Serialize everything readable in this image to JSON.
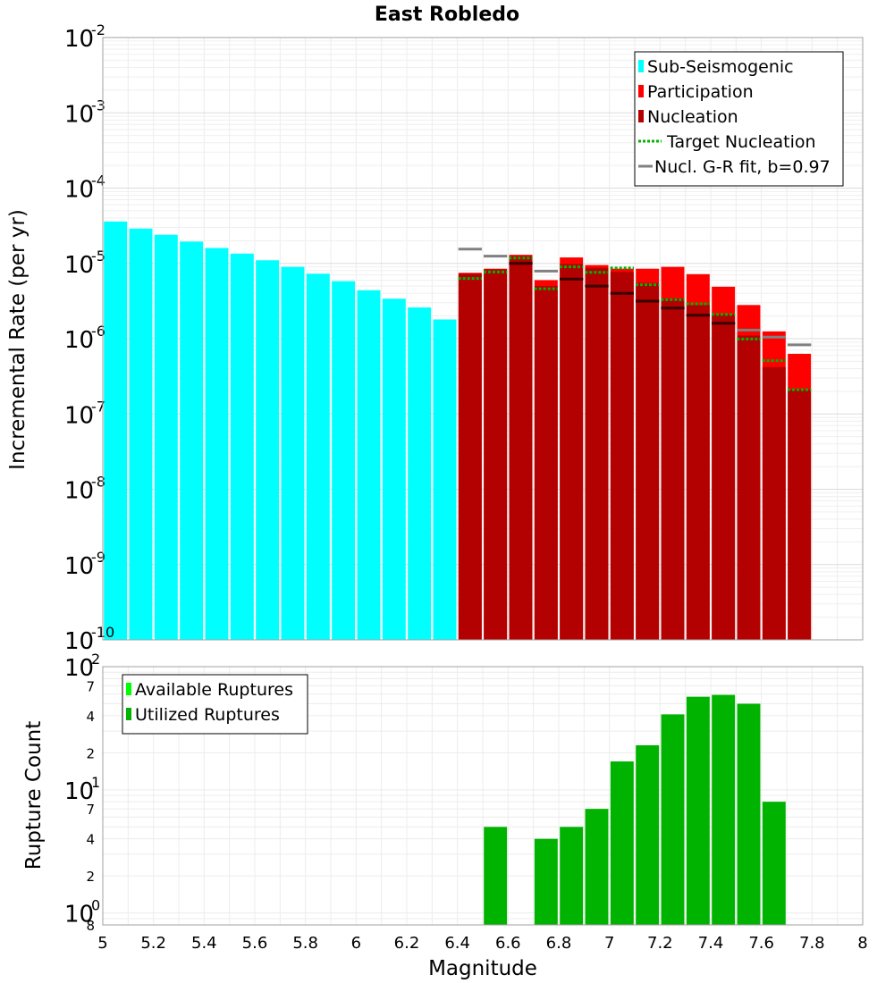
{
  "colors": {
    "sub": "#00ffff",
    "participation": "#ff0000",
    "nucleation": "#b30000",
    "target": "#00b300",
    "gr": "#808080",
    "available": "#00ff00",
    "utilized": "#00b300"
  },
  "chart_data": [
    {
      "type": "bar",
      "title": "East Robledo",
      "xlabel": "Magnitude",
      "ylabel": "Incremental Rate (per yr)",
      "yscale": "log",
      "xlim": [
        5,
        8
      ],
      "ylim": [
        1e-10,
        0.01
      ],
      "ytick_labels": [
        {
          "base": "10",
          "exp": "-10"
        },
        {
          "base": "10",
          "exp": "-9"
        },
        {
          "base": "10",
          "exp": "-8"
        },
        {
          "base": "10",
          "exp": "-7"
        },
        {
          "base": "10",
          "exp": "-6"
        },
        {
          "base": "10",
          "exp": "-5"
        },
        {
          "base": "10",
          "exp": "-4"
        },
        {
          "base": "10",
          "exp": "-3"
        },
        {
          "base": "10",
          "exp": "-2"
        }
      ],
      "bin_width": 0.1,
      "legend": [
        {
          "label": "Sub-Seismogenic",
          "kind": "bar",
          "color_key": "sub"
        },
        {
          "label": "Participation",
          "kind": "bar",
          "color_key": "participation"
        },
        {
          "label": "Nucleation",
          "kind": "bar",
          "color_key": "nucleation"
        },
        {
          "label": "Target Nucleation",
          "kind": "dotted",
          "color_key": "target"
        },
        {
          "label": "Nucl. G-R fit, b=0.97",
          "kind": "line",
          "color_key": "gr"
        }
      ],
      "series": [
        {
          "name": "Sub-Seismogenic",
          "x": [
            5.05,
            5.15,
            5.25,
            5.35,
            5.45,
            5.55,
            5.65,
            5.75,
            5.85,
            5.95,
            6.05,
            6.15,
            6.25,
            6.35
          ],
          "values": [
            3.6e-05,
            2.9e-05,
            2.4e-05,
            1.95e-05,
            1.6e-05,
            1.35e-05,
            1.1e-05,
            9e-06,
            7.3e-06,
            5.8e-06,
            4.4e-06,
            3.4e-06,
            2.6e-06,
            1.8e-06
          ]
        },
        {
          "name": "Participation",
          "x": [
            6.45,
            6.55,
            6.65,
            6.75,
            6.85,
            6.95,
            7.05,
            7.15,
            7.25,
            7.35,
            7.45,
            7.55,
            7.65,
            7.75
          ],
          "values": [
            7.5e-06,
            8.5e-06,
            1.3e-05,
            6e-06,
            1.2e-05,
            9.5e-06,
            8.5e-06,
            8.5e-06,
            9e-06,
            7.2e-06,
            4.9e-06,
            2.8e-06,
            1.25e-06,
            6.3e-07
          ]
        },
        {
          "name": "Nucleation",
          "x": [
            6.45,
            6.55,
            6.65,
            6.75,
            6.85,
            6.95,
            7.05,
            7.15,
            7.25,
            7.35,
            7.45,
            7.55,
            7.65,
            7.75
          ],
          "values": [
            7.3e-06,
            8.3e-06,
            1.25e-05,
            5e-06,
            9.8e-06,
            8.7e-06,
            7.7e-06,
            5.5e-06,
            3.4e-06,
            2.8e-06,
            2.1e-06,
            1.1e-06,
            4.2e-07,
            2.1e-07
          ]
        },
        {
          "name": "Target Nucleation",
          "x": [
            6.45,
            6.55,
            6.65,
            6.75,
            6.85,
            6.95,
            7.05,
            7.15,
            7.25,
            7.35,
            7.45,
            7.55,
            7.65,
            7.75
          ],
          "values": [
            6.3e-06,
            7.7e-06,
            1.18e-05,
            4.6e-06,
            9e-06,
            7.6e-06,
            8.7e-06,
            5.2e-06,
            3.3e-06,
            2.9e-06,
            2.1e-06,
            9.9e-07,
            5.1e-07,
            2.1e-07
          ]
        },
        {
          "name": "Nucl. G-R fit, b=0.97",
          "x": [
            6.45,
            6.55,
            6.65,
            6.75,
            6.85,
            6.95,
            7.05,
            7.15,
            7.25,
            7.35,
            7.45,
            7.55,
            7.65,
            7.75
          ],
          "values": [
            1.55e-05,
            1.25e-05,
            1e-05,
            7.9e-06,
            6.2e-06,
            5e-06,
            4e-06,
            3.15e-06,
            2.55e-06,
            2.05e-06,
            1.6e-06,
            1.3e-06,
            1.05e-06,
            8.3e-07
          ]
        }
      ]
    },
    {
      "type": "bar",
      "title": "",
      "xlabel": "Magnitude",
      "ylabel": "Rupture Count",
      "yscale": "log",
      "xlim": [
        5,
        8
      ],
      "ylim": [
        0.8,
        100
      ],
      "xticks": [
        5,
        5.2,
        5.4,
        5.6,
        5.8,
        6,
        6.2,
        6.4,
        6.6,
        6.8,
        7,
        7.2,
        7.4,
        7.6,
        7.8,
        8
      ],
      "xtick_labels": [
        "5",
        "5.2",
        "5.4",
        "5.6",
        "5.8",
        "6",
        "6.2",
        "6.4",
        "6.6",
        "6.8",
        "7",
        "7.2",
        "7.4",
        "7.6",
        "7.8",
        "8"
      ],
      "ytick_labels": [
        {
          "base": "10",
          "exp": "0"
        },
        {
          "base": "10",
          "exp": "1"
        },
        {
          "base": "10",
          "exp": "2"
        }
      ],
      "minor_ticks": [
        {
          "value": 0.8,
          "label": "8"
        },
        {
          "value": 2,
          "label": "2"
        },
        {
          "value": 4,
          "label": "4"
        },
        {
          "value": 7,
          "label": "7"
        },
        {
          "value": 20,
          "label": "2"
        },
        {
          "value": 40,
          "label": "4"
        },
        {
          "value": 70,
          "label": "7"
        }
      ],
      "legend": [
        {
          "label": "Available Ruptures",
          "kind": "bar",
          "color_key": "available"
        },
        {
          "label": "Utilized Ruptures",
          "kind": "bar",
          "color_key": "utilized"
        }
      ],
      "series": [
        {
          "name": "Utilized Ruptures",
          "x": [
            6.55,
            6.75,
            6.85,
            6.95,
            7.05,
            7.15,
            7.25,
            7.35,
            7.45,
            7.55,
            7.65
          ],
          "values": [
            5,
            4,
            5,
            7,
            17,
            23,
            41,
            57,
            59,
            50,
            8
          ]
        }
      ]
    }
  ]
}
